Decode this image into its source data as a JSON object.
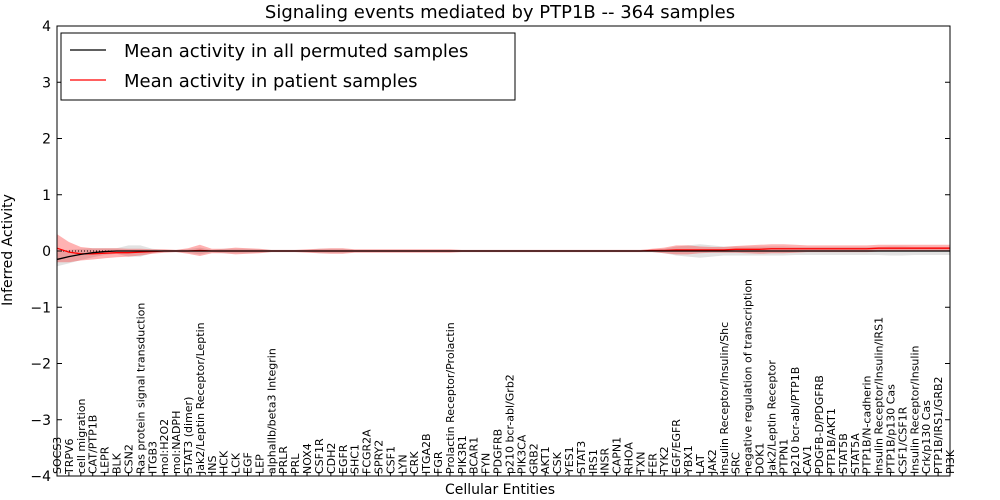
{
  "chart_data": {
    "type": "line",
    "title": "Signaling events mediated by PTP1B -- 364 samples",
    "xlabel": "Cellular Entities",
    "ylabel": "Inferred Activity",
    "ylim": [
      -4,
      4
    ],
    "yticks": [
      -4,
      -3,
      -2,
      -1,
      0,
      1,
      2,
      3,
      4
    ],
    "legend_position": "top-left",
    "categories": [
      "SOCS3",
      "TRPV6",
      "cell migration",
      "CAT/PTP1B",
      "LEPR",
      "BLK",
      "CSN2",
      "Ras protein signal transduction",
      "ITGB3",
      "mol:H2O2",
      "mol:NADPH",
      "STAT3 (dimer)",
      "Jak2/Leptin Receptor/Leptin",
      "INS",
      "HCK",
      "LCK",
      "EGF",
      "LEP",
      "alphaIIb/beta3 Integrin",
      "PRLR",
      "PRL",
      "NOX4",
      "CSF1R",
      "CDH2",
      "EGFR",
      "SHC1",
      "FCGR2A",
      "SPRY2",
      "CSF1",
      "LYN",
      "CRK",
      "ITGA2B",
      "FGR",
      "Prolactin Receptor/Prolactin",
      "PIK3R1",
      "BCAR1",
      "FYN",
      "PDGFRB",
      "p210 bcr-abl/Grb2",
      "PIK3CA",
      "GRB2",
      "AKT1",
      "CSK",
      "YES1",
      "STAT3",
      "IRS1",
      "INSR",
      "CAPN1",
      "RHOA",
      "TXN",
      "FER",
      "TYK2",
      "EGF/EGFR",
      "YBX1",
      "LAT",
      "JAK2",
      "Insulin Receptor/Insulin/Shc",
      "SRC",
      "negative regulation of transcription",
      "DOK1",
      "Jak2/Leptin Receptor",
      "PTPN1",
      "p210 bcr-abl/PTP1B",
      "CAV1",
      "PDGFB-D/PDGFRB",
      "PTP1B/AKT1",
      "STAT5B",
      "STAT5A",
      "PTP1B/N-cadherin",
      "Insulin Receptor/Insulin/IRS1",
      "PTP1B/p130 Cas",
      "CSF1/CSF1R",
      "Insulin Receptor/Insulin",
      "Crk/p130 Cas",
      "PTP1B/IRS1/GRB2",
      "PI3K"
    ],
    "series": [
      {
        "name": "Mean activity in all permuted samples",
        "color": "#000000",
        "values": [
          -0.15,
          -0.1,
          -0.06,
          -0.03,
          -0.01,
          0,
          0,
          0,
          0,
          0,
          0,
          0,
          0,
          0,
          0,
          0,
          0,
          0,
          0,
          0,
          0,
          0,
          0,
          0,
          0,
          0,
          0,
          0,
          0,
          0,
          0,
          0,
          0,
          0,
          0,
          0,
          0,
          0,
          0,
          0,
          0,
          0,
          0,
          0,
          0,
          0,
          0,
          0,
          0,
          0,
          0,
          0,
          0,
          0,
          0,
          0,
          0,
          0,
          0,
          0,
          0,
          0,
          0,
          0,
          0,
          0,
          0,
          0,
          0,
          0,
          0,
          0,
          0,
          0,
          0,
          0
        ],
        "band_halfwidth": [
          0.12,
          0.12,
          0.1,
          0.08,
          0.06,
          0.05,
          0.1,
          0.1,
          0.04,
          0.02,
          0.02,
          0.03,
          0.06,
          0.02,
          0.04,
          0.04,
          0.04,
          0.03,
          0.02,
          0.02,
          0.02,
          0.02,
          0.04,
          0.04,
          0.04,
          0.02,
          0.02,
          0.02,
          0.02,
          0.02,
          0.02,
          0.02,
          0.02,
          0.02,
          0.02,
          0.02,
          0.02,
          0.02,
          0.02,
          0.02,
          0.02,
          0.02,
          0.02,
          0.02,
          0.02,
          0.02,
          0.02,
          0.02,
          0.02,
          0.02,
          0.02,
          0.04,
          0.08,
          0.1,
          0.12,
          0.1,
          0.08,
          0.08,
          0.08,
          0.08,
          0.08,
          0.08,
          0.07,
          0.07,
          0.07,
          0.07,
          0.07,
          0.07,
          0.07,
          0.07,
          0.08,
          0.08,
          0.07,
          0.07,
          0.07,
          0.07
        ]
      },
      {
        "name": "Mean activity in patient samples",
        "color": "#ff0000",
        "values": [
          0.05,
          -0.02,
          -0.05,
          -0.05,
          -0.04,
          -0.03,
          -0.03,
          -0.02,
          -0.01,
          0,
          0,
          0,
          0.01,
          0,
          0,
          0,
          0,
          0,
          0,
          0,
          0,
          0,
          0,
          0,
          0,
          0,
          0,
          0,
          0,
          0,
          0,
          0,
          0,
          0,
          0,
          0,
          0,
          0,
          0,
          0,
          0,
          0,
          0,
          0,
          0,
          0,
          0,
          0,
          0,
          0,
          0.01,
          0.01,
          0.02,
          0.02,
          0.02,
          0.02,
          0.02,
          0.03,
          0.03,
          0.03,
          0.04,
          0.04,
          0.04,
          0.04,
          0.04,
          0.04,
          0.04,
          0.04,
          0.04,
          0.05,
          0.05,
          0.05,
          0.05,
          0.05,
          0.05,
          0.05
        ],
        "band_halfwidth": [
          0.25,
          0.18,
          0.12,
          0.1,
          0.09,
          0.08,
          0.07,
          0.06,
          0.04,
          0.03,
          0.02,
          0.05,
          0.1,
          0.04,
          0.04,
          0.06,
          0.05,
          0.04,
          0.02,
          0.02,
          0.02,
          0.03,
          0.04,
          0.05,
          0.05,
          0.03,
          0.03,
          0.03,
          0.03,
          0.03,
          0.03,
          0.03,
          0.03,
          0.03,
          0.02,
          0.02,
          0.02,
          0.02,
          0.02,
          0.02,
          0.02,
          0.02,
          0.02,
          0.02,
          0.02,
          0.02,
          0.02,
          0.02,
          0.02,
          0.02,
          0.03,
          0.05,
          0.08,
          0.08,
          0.06,
          0.05,
          0.05,
          0.06,
          0.07,
          0.08,
          0.08,
          0.08,
          0.07,
          0.06,
          0.06,
          0.06,
          0.06,
          0.06,
          0.06,
          0.06,
          0.06,
          0.06,
          0.06,
          0.06,
          0.06,
          0.06
        ]
      }
    ]
  }
}
